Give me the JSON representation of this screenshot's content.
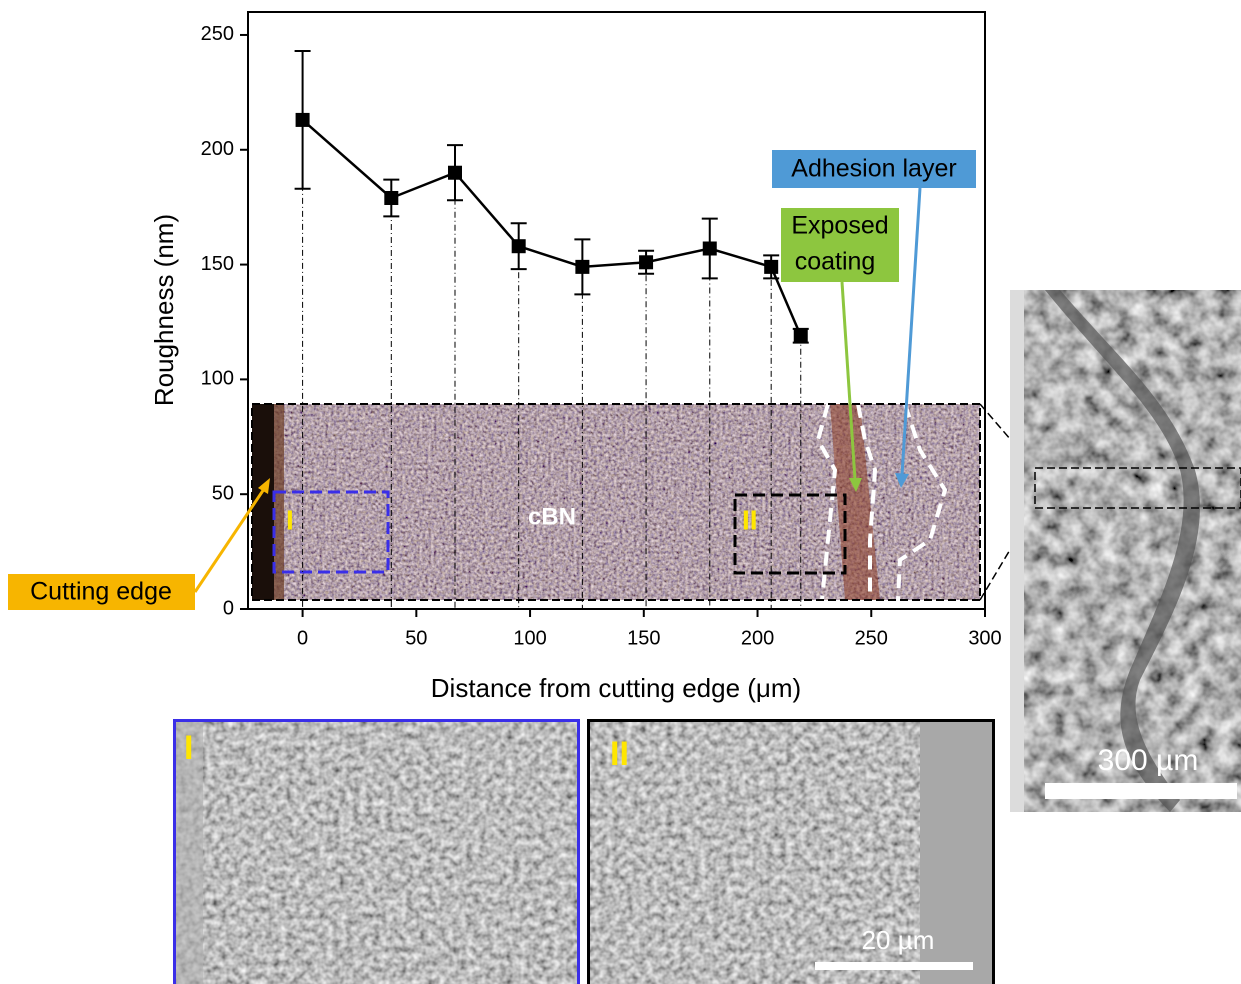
{
  "chart_data": {
    "type": "line",
    "x_label": "Distance from cutting edge (μm)",
    "y_label": "Roughness (nm)",
    "x": [
      0,
      39,
      67,
      95,
      123,
      151,
      179,
      206,
      219
    ],
    "series": [
      {
        "color": "#000000",
        "values": [
          213,
          179,
          190,
          158,
          149,
          151,
          157,
          149,
          119
        ],
        "errors": [
          30,
          8,
          12,
          10,
          12,
          5,
          13,
          5,
          3
        ]
      }
    ],
    "xlim": [
      -24,
      300
    ],
    "xticks": [
      0,
      50,
      100,
      150,
      200,
      250,
      300
    ],
    "ylim": [
      0,
      260
    ],
    "yticks": [
      0,
      50,
      100,
      150,
      200,
      250
    ],
    "annotations": {
      "adhesion_layer": "Adhesion layer",
      "exposed_coating": [
        "Exposed",
        "coating"
      ],
      "cutting_edge": "Cutting edge",
      "material": "cBN",
      "region_1": "I",
      "region_2": "II",
      "scale_large": "300 µm",
      "scale_small": "20 µm"
    }
  }
}
